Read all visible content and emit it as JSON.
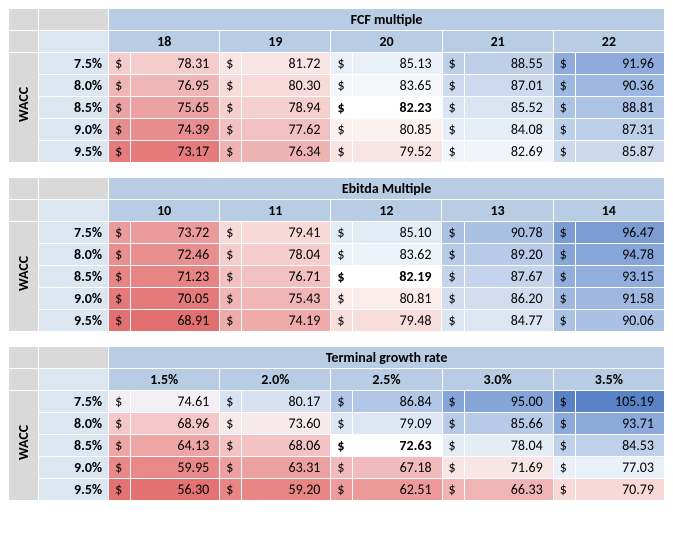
{
  "wacc_label": "WACC",
  "dollar": "$",
  "base_colors": {
    "header_bg": "#b8cce4",
    "corner_bg": "#d9d9d9",
    "rowlabel_bg": "#dce6f1"
  },
  "tables": [
    {
      "title": "FCF multiple",
      "col_headers": [
        "18",
        "19",
        "20",
        "21",
        "22"
      ],
      "row_labels": [
        "7.5%",
        "8.0%",
        "8.5%",
        "9.0%",
        "9.5%"
      ],
      "rows": [
        [
          {
            "v": "78.31",
            "c": "#f4cccc"
          },
          {
            "v": "81.72",
            "c": "#f9e5e5"
          },
          {
            "v": "85.13",
            "c": "#eaf0f8"
          },
          {
            "v": "88.55",
            "c": "#bdd0e8"
          },
          {
            "v": "91.96",
            "c": "#8faadc"
          }
        ],
        [
          {
            "v": "76.95",
            "c": "#f0b6b6"
          },
          {
            "v": "80.30",
            "c": "#f7dada"
          },
          {
            "v": "83.65",
            "c": "#f4f6fa"
          },
          {
            "v": "87.01",
            "c": "#cdd9ee"
          },
          {
            "v": "90.36",
            "c": "#9db8e0"
          }
        ],
        [
          {
            "v": "75.65",
            "c": "#eca2a2"
          },
          {
            "v": "78.94",
            "c": "#f5cece"
          },
          {
            "v": "82.23",
            "c": "#ffffff",
            "b": true
          },
          {
            "v": "85.52",
            "c": "#dbe4f2"
          },
          {
            "v": "88.81",
            "c": "#adc3e5"
          }
        ],
        [
          {
            "v": "74.39",
            "c": "#e88e8e"
          },
          {
            "v": "77.62",
            "c": "#f2c0c0"
          },
          {
            "v": "80.85",
            "c": "#fbf1f1"
          },
          {
            "v": "84.08",
            "c": "#e7edf6"
          },
          {
            "v": "87.31",
            "c": "#bccfe9"
          }
        ],
        [
          {
            "v": "73.17",
            "c": "#e57b7b"
          },
          {
            "v": "76.34",
            "c": "#f0b3b3"
          },
          {
            "v": "79.52",
            "c": "#f9e4e4"
          },
          {
            "v": "82.69",
            "c": "#f1f4fa"
          },
          {
            "v": "85.87",
            "c": "#ccd9ed"
          }
        ]
      ]
    },
    {
      "title": "Ebitda Multiple",
      "col_headers": [
        "10",
        "11",
        "12",
        "13",
        "14"
      ],
      "row_labels": [
        "7.5%",
        "8.0%",
        "8.5%",
        "9.0%",
        "9.5%"
      ],
      "rows": [
        [
          {
            "v": "73.72",
            "c": "#eb9b9b"
          },
          {
            "v": "79.41",
            "c": "#f7d9d9"
          },
          {
            "v": "85.10",
            "c": "#e3ebf5"
          },
          {
            "v": "90.78",
            "c": "#aac1e4"
          },
          {
            "v": "96.47",
            "c": "#7c9dd4"
          }
        ],
        [
          {
            "v": "72.46",
            "c": "#e98f8f"
          },
          {
            "v": "78.04",
            "c": "#f5cdcd"
          },
          {
            "v": "83.62",
            "c": "#eef2f9"
          },
          {
            "v": "89.20",
            "c": "#b7cae8"
          },
          {
            "v": "94.78",
            "c": "#86a5d8"
          }
        ],
        [
          {
            "v": "71.23",
            "c": "#e78484"
          },
          {
            "v": "76.71",
            "c": "#f3c0c0"
          },
          {
            "v": "82.19",
            "c": "#ffffff",
            "b": true
          },
          {
            "v": "87.67",
            "c": "#c4d4ec"
          },
          {
            "v": "93.15",
            "c": "#91aedc"
          }
        ],
        [
          {
            "v": "70.05",
            "c": "#e57a7a"
          },
          {
            "v": "75.43",
            "c": "#f1b5b5"
          },
          {
            "v": "80.81",
            "c": "#faeceb"
          },
          {
            "v": "86.20",
            "c": "#d1dcef"
          },
          {
            "v": "91.58",
            "c": "#9eb8e0"
          }
        ],
        [
          {
            "v": "68.91",
            "c": "#e37070"
          },
          {
            "v": "74.19",
            "c": "#efaaaa"
          },
          {
            "v": "79.48",
            "c": "#f7dedd"
          },
          {
            "v": "84.77",
            "c": "#dde5f2"
          },
          {
            "v": "90.06",
            "c": "#aac1e4"
          }
        ]
      ]
    },
    {
      "title": "Terminal growth rate",
      "col_headers": [
        "1.5%",
        "2.0%",
        "2.5%",
        "3.0%",
        "3.5%"
      ],
      "row_labels": [
        "7.5%",
        "8.0%",
        "8.5%",
        "9.0%",
        "9.5%"
      ],
      "rows": [
        [
          {
            "v": "74.61",
            "c": "#f2eef3"
          },
          {
            "v": "80.17",
            "c": "#d7e1f1"
          },
          {
            "v": "86.84",
            "c": "#b1c5e6"
          },
          {
            "v": "95.00",
            "c": "#85a5d8"
          },
          {
            "v": "105.19",
            "c": "#5a82c6"
          }
        ],
        [
          {
            "v": "68.96",
            "c": "#f4c8c8"
          },
          {
            "v": "73.60",
            "c": "#f7eaea"
          },
          {
            "v": "79.09",
            "c": "#dee6f3"
          },
          {
            "v": "85.66",
            "c": "#b7cae8"
          },
          {
            "v": "93.71",
            "c": "#8ba9da"
          }
        ],
        [
          {
            "v": "64.13",
            "c": "#eea5a5"
          },
          {
            "v": "68.06",
            "c": "#f3c2c2"
          },
          {
            "v": "72.63",
            "c": "#ffffff",
            "b": true
          },
          {
            "v": "78.04",
            "c": "#e4ecf5"
          },
          {
            "v": "84.53",
            "c": "#bfd1ea"
          }
        ],
        [
          {
            "v": "59.95",
            "c": "#e98888"
          },
          {
            "v": "63.31",
            "c": "#eda0a0"
          },
          {
            "v": "67.18",
            "c": "#f2bbbb"
          },
          {
            "v": "71.69",
            "c": "#f8e6e6"
          },
          {
            "v": "77.03",
            "c": "#eaf0f8"
          }
        ],
        [
          {
            "v": "56.30",
            "c": "#e57272"
          },
          {
            "v": "59.20",
            "c": "#e88585"
          },
          {
            "v": "62.51",
            "c": "#ec9a9a"
          },
          {
            "v": "66.33",
            "c": "#f1b4b4"
          },
          {
            "v": "70.79",
            "c": "#f7d9d9"
          }
        ]
      ]
    }
  ]
}
